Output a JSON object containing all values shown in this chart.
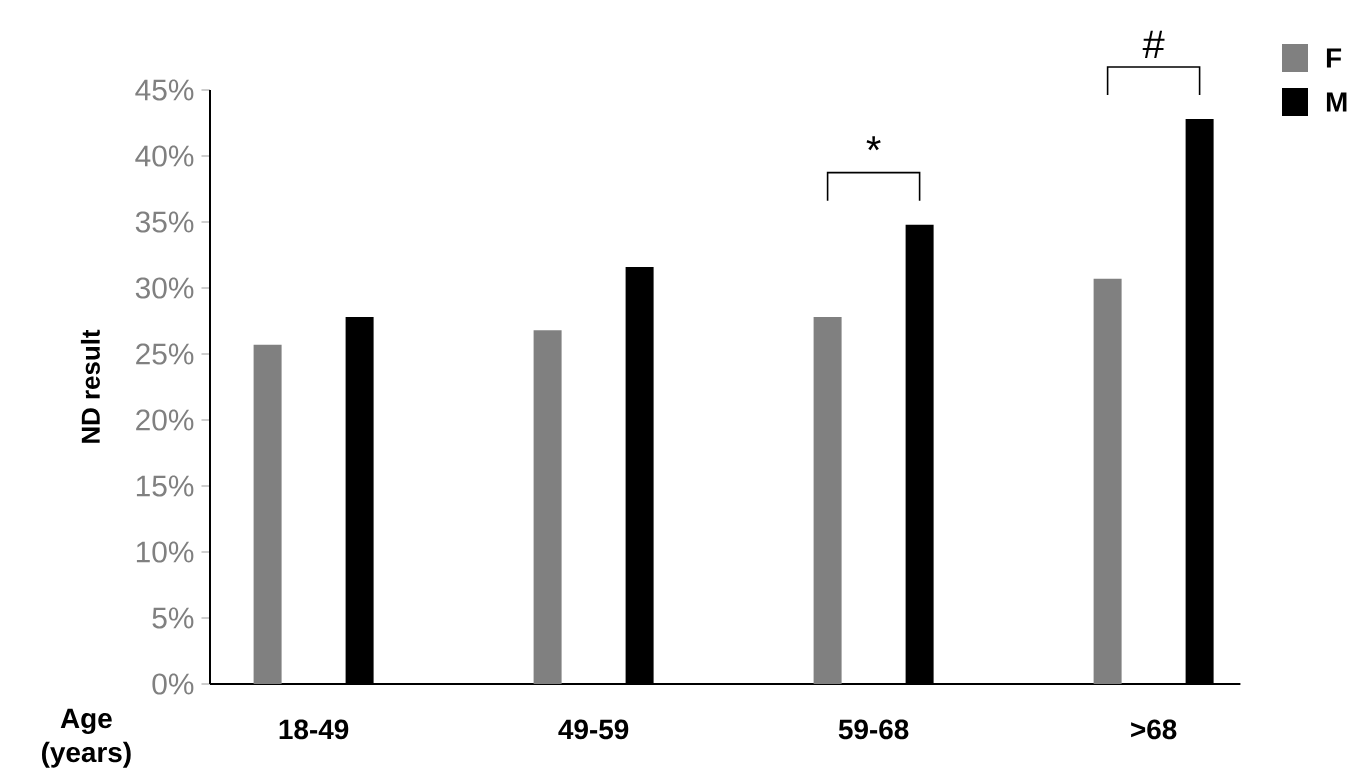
{
  "chart_data": {
    "type": "bar",
    "xlabel": "Age (years)",
    "ylabel": "ND result",
    "categories": [
      "18-49",
      "49-59",
      "59-68",
      ">68"
    ],
    "series": [
      {
        "name": "F",
        "color": "#808080",
        "values": [
          25.7,
          26.8,
          27.8,
          30.7
        ]
      },
      {
        "name": "M",
        "color": "#000000",
        "values": [
          27.8,
          31.6,
          34.8,
          42.8
        ]
      }
    ],
    "ylim": [
      0,
      45
    ],
    "yticks": [
      {
        "value": 0,
        "label": "0%"
      },
      {
        "value": 5,
        "label": "5%"
      },
      {
        "value": 10,
        "label": "10%"
      },
      {
        "value": 15,
        "label": "15%"
      },
      {
        "value": 20,
        "label": "20%"
      },
      {
        "value": 25,
        "label": "25%"
      },
      {
        "value": 30,
        "label": "30%"
      },
      {
        "value": 35,
        "label": "35%"
      },
      {
        "value": 40,
        "label": "40%"
      },
      {
        "value": 45,
        "label": "45%"
      }
    ],
    "annotations": [
      "*",
      "#"
    ],
    "legend": "top right",
    "grid": false
  }
}
